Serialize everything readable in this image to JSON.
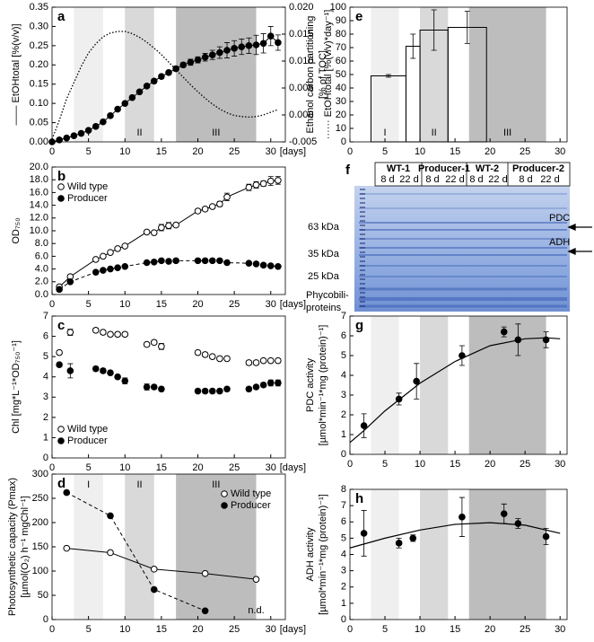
{
  "chart_data": [
    {
      "type": "scatter",
      "panel": "a",
      "ylabel": "—— EtOHtotal [%(v/v)]",
      "y2label": "······ EtOHtotal [%(v/v)*day⁻¹]",
      "xlabel": "[days]",
      "x": [
        0,
        1,
        2,
        3,
        4,
        5,
        6,
        7,
        8,
        9,
        10,
        11,
        12,
        13,
        14,
        15,
        16,
        17,
        18,
        19,
        20,
        21,
        22,
        23,
        24,
        25,
        26,
        27,
        28,
        29,
        30,
        31
      ],
      "series": [
        {
          "marker": "filled",
          "line": "solid",
          "color": "#000000",
          "values": [
            0.0,
            0.005,
            0.01,
            0.016,
            0.022,
            0.03,
            0.04,
            0.052,
            0.068,
            0.085,
            0.1,
            0.115,
            0.13,
            0.145,
            0.158,
            0.17,
            0.18,
            0.19,
            0.2,
            0.207,
            0.213,
            0.22,
            0.226,
            0.232,
            0.238,
            0.243,
            0.247,
            0.25,
            0.252,
            0.256,
            0.275,
            0.258
          ],
          "errors": [
            0.002,
            0.002,
            0.002,
            0.002,
            0.002,
            0.003,
            0.003,
            0.003,
            0.003,
            0.003,
            0.003,
            0.004,
            0.004,
            0.004,
            0.005,
            0.005,
            0.005,
            0.006,
            0.006,
            0.008,
            0.008,
            0.01,
            0.012,
            0.015,
            0.02,
            0.02,
            0.02,
            0.02,
            0.025,
            0.025,
            0.025,
            0.02
          ]
        },
        {
          "axis": "y2",
          "line": "dotted",
          "color": "#000000",
          "values": [
            -0.0045,
            -0.001,
            0.003,
            0.006,
            0.009,
            0.0115,
            0.0132,
            0.0145,
            0.0152,
            0.0155,
            0.0155,
            0.0151,
            0.0144,
            0.0135,
            0.0124,
            0.0112,
            0.0098,
            0.0084,
            0.007,
            0.0056,
            0.0043,
            0.0031,
            0.002,
            0.0011,
            0.0004,
            -0.0001,
            -0.0003,
            -0.0004,
            -0.0003,
            0,
            0.0005,
            0.001
          ]
        }
      ],
      "xlim": [
        0,
        32
      ],
      "xticks": [
        0,
        5,
        10,
        15,
        20,
        25,
        30
      ],
      "ylim": [
        0,
        0.35
      ],
      "yticks": [
        {
          "value": 0,
          "label": "0.00"
        },
        {
          "value": 0.05,
          "label": "0.05"
        },
        {
          "value": 0.1,
          "label": "0.10"
        },
        {
          "value": 0.15,
          "label": "0.15"
        },
        {
          "value": 0.2,
          "label": "0.20"
        },
        {
          "value": 0.25,
          "label": "0.25"
        },
        {
          "value": 0.3,
          "label": "0.30"
        },
        {
          "value": 0.35,
          "label": "0.35"
        }
      ],
      "y2lim": [
        -0.005,
        0.02
      ],
      "y2ticks": [
        {
          "value": -0.005,
          "label": "-0.005"
        },
        {
          "value": 0,
          "label": "0.000"
        },
        {
          "value": 0.005,
          "label": "0.005"
        },
        {
          "value": 0.01,
          "label": "0.010"
        },
        {
          "value": 0.015,
          "label": "0.015"
        },
        {
          "value": 0.02,
          "label": "0.020"
        }
      ],
      "shading": [
        [
          3,
          7
        ],
        [
          10,
          14
        ],
        [
          17,
          28
        ]
      ],
      "shading_labels": [
        "I",
        "II",
        "III"
      ]
    },
    {
      "type": "scatter",
      "panel": "b",
      "ylabel": "OD₇₅₀",
      "xlabel": "[days]",
      "legend": "upper left",
      "x": [
        1,
        2.5,
        6,
        7,
        8,
        9,
        10,
        13,
        14,
        15,
        16,
        17,
        20,
        21,
        22,
        23,
        24,
        27,
        28,
        29,
        30,
        31
      ],
      "series": [
        {
          "name": "Wild type",
          "marker": "open",
          "line": "solid",
          "color": "#000000",
          "values": [
            1.2,
            2.8,
            5.5,
            6.0,
            6.6,
            7.2,
            7.6,
            9.8,
            9.7,
            10.5,
            10.8,
            10.9,
            13.1,
            13.4,
            13.8,
            14.2,
            15.3,
            16.8,
            17.2,
            17.4,
            17.8,
            17.9
          ],
          "errors": [
            0.2,
            0.2,
            0.2,
            0.2,
            0.2,
            0.2,
            0.2,
            0.2,
            0.2,
            0.5,
            0.5,
            0.3,
            0.3,
            0.3,
            0.3,
            0.4,
            0.6,
            0.5,
            0.5,
            0.4,
            0.7,
            0.6
          ]
        },
        {
          "name": "Producer",
          "marker": "filled",
          "line": "dashed",
          "color": "#000000",
          "values": [
            0.8,
            2.0,
            3.5,
            3.8,
            4.0,
            4.2,
            4.4,
            5.0,
            5.1,
            5.3,
            5.2,
            5.3,
            5.3,
            5.3,
            5.3,
            5.3,
            5.0,
            4.9,
            4.8,
            4.6,
            4.5,
            4.4
          ]
        }
      ],
      "xlim": [
        0,
        32
      ],
      "xticks": [
        0,
        5,
        10,
        15,
        20,
        25,
        30
      ],
      "ylim": [
        0,
        20
      ],
      "yticks": [
        {
          "value": 0,
          "label": "0.0"
        },
        {
          "value": 2,
          "label": "2.0"
        },
        {
          "value": 4,
          "label": "4.0"
        },
        {
          "value": 6,
          "label": "6.0"
        },
        {
          "value": 8,
          "label": "8.0"
        },
        {
          "value": 10,
          "label": "10.0"
        },
        {
          "value": 12,
          "label": "12.0"
        },
        {
          "value": 14,
          "label": "14.0"
        },
        {
          "value": 16,
          "label": "16.0"
        },
        {
          "value": 18,
          "label": "18.0"
        },
        {
          "value": 20,
          "label": "20.0"
        }
      ]
    },
    {
      "type": "scatter",
      "panel": "c",
      "ylabel": "Chl [mg*L⁻¹*OD₇₅₀⁻¹]",
      "xlabel": "[days]",
      "legend": "lower left",
      "x": [
        1,
        2.5,
        6,
        7,
        8,
        9,
        10,
        13,
        14,
        15,
        20,
        21,
        22,
        23,
        24,
        27,
        28,
        29,
        30,
        31
      ],
      "series": [
        {
          "name": "Wild type",
          "marker": "open",
          "color": "#000000",
          "values": [
            5.2,
            6.2,
            6.3,
            6.2,
            6.1,
            6.1,
            6.1,
            5.6,
            5.7,
            5.5,
            5.2,
            5.1,
            5.0,
            4.9,
            4.9,
            4.7,
            4.7,
            4.8,
            4.8,
            4.8
          ],
          "errors": [
            0.1,
            0.15,
            0.1,
            0.1,
            0.1,
            0.1,
            0.1,
            0.1,
            0.1,
            0.15,
            0.1,
            0.1,
            0.1,
            0.1,
            0.1,
            0.1,
            0.1,
            0.1,
            0.1,
            0.1
          ]
        },
        {
          "name": "Producer",
          "marker": "filled",
          "color": "#000000",
          "values": [
            4.6,
            4.3,
            4.4,
            4.3,
            4.2,
            4.0,
            3.8,
            3.5,
            3.5,
            3.4,
            3.3,
            3.3,
            3.3,
            3.3,
            3.4,
            3.4,
            3.5,
            3.6,
            3.7,
            3.7
          ],
          "errors": [
            0.1,
            0.35,
            0.1,
            0.1,
            0.1,
            0.1,
            0.15,
            0.15,
            0.1,
            0.1,
            0.1,
            0.1,
            0.1,
            0.1,
            0.1,
            0.1,
            0.1,
            0.1,
            0.15,
            0.15
          ]
        }
      ],
      "xlim": [
        0,
        32
      ],
      "xticks": [
        0,
        5,
        10,
        15,
        20,
        25,
        30
      ],
      "ylim": [
        0,
        7
      ],
      "yticks": [
        0,
        1,
        2,
        3,
        4,
        5,
        6,
        7
      ]
    },
    {
      "type": "scatter",
      "panel": "d",
      "ylabel": [
        "Photosynthetic capacity (Pmax)",
        "[µmol(O₂) h⁻¹ mgChl⁻¹]"
      ],
      "xlabel": "[days]",
      "legend": "upper right",
      "annotation": "n.d.",
      "series": [
        {
          "name": "Wild type",
          "marker": "open",
          "line": "solid",
          "color": "#000000",
          "x": [
            2,
            8,
            14,
            21,
            28
          ],
          "values": [
            147,
            138,
            104,
            95,
            83
          ]
        },
        {
          "name": "Producer",
          "marker": "filled",
          "line": "dashed",
          "color": "#000000",
          "x": [
            2,
            8,
            14,
            21
          ],
          "values": [
            262,
            214,
            62,
            18
          ]
        }
      ],
      "xlim": [
        0,
        32
      ],
      "xticks": [
        0,
        5,
        10,
        15,
        20,
        25,
        30
      ],
      "ylim": [
        0,
        300
      ],
      "yticks": [
        0,
        50,
        100,
        150,
        200,
        250,
        300
      ],
      "shading": [
        [
          3,
          7
        ],
        [
          10,
          14
        ],
        [
          17,
          28
        ]
      ],
      "shading_labels": [
        "I",
        "II",
        "III"
      ]
    },
    {
      "type": "histogram",
      "panel": "e",
      "ylabel": [
        "Ethanol carbon partitioning",
        "[% of TOC]"
      ],
      "bins": [
        3,
        8,
        10,
        14,
        19.5
      ],
      "values": [
        49,
        71,
        83,
        85
      ],
      "errors": [
        1,
        9,
        15,
        12
      ],
      "xlim": [
        0,
        31
      ],
      "xticks": [
        0,
        5,
        10,
        15,
        20,
        25,
        30
      ],
      "ylim": [
        0,
        100
      ],
      "yticks": [
        0,
        10,
        20,
        30,
        40,
        50,
        60,
        70,
        80,
        90,
        100
      ],
      "shading": [
        [
          3,
          7
        ],
        [
          10,
          14
        ],
        [
          17,
          28
        ]
      ],
      "shading_labels": [
        "I",
        "II",
        "III"
      ]
    },
    {
      "type": "scatter",
      "panel": "g",
      "ylabel": [
        "PDC activity",
        "[µmol*min⁻¹*mg (protein)⁻¹]"
      ],
      "series": [
        {
          "marker": "filled",
          "color": "#000000",
          "x": [
            2,
            7,
            9.5,
            16,
            22,
            24,
            28
          ],
          "values": [
            1.45,
            2.8,
            3.7,
            5.0,
            6.2,
            5.8,
            5.8
          ],
          "errors": [
            0.6,
            0.3,
            0.9,
            0.5,
            0.25,
            0.8,
            0.4
          ]
        }
      ],
      "fit": {
        "x": [
          0,
          2,
          5,
          10,
          15,
          20,
          25,
          28,
          30
        ],
        "values": [
          0.6,
          1.2,
          2.2,
          3.6,
          4.7,
          5.5,
          5.85,
          5.9,
          5.85
        ]
      },
      "xlim": [
        0,
        31
      ],
      "xticks": [
        0,
        5,
        10,
        15,
        20,
        25,
        30
      ],
      "ylim": [
        0,
        7
      ],
      "yticks": [
        0,
        1,
        2,
        3,
        4,
        5,
        6,
        7
      ],
      "shading": [
        [
          3,
          7
        ],
        [
          10,
          14
        ],
        [
          17,
          28
        ]
      ]
    },
    {
      "type": "scatter",
      "panel": "h",
      "ylabel": [
        "ADH activity",
        "[µmol*min⁻¹*mg (protein)⁻¹]"
      ],
      "series": [
        {
          "marker": "filled",
          "color": "#000000",
          "x": [
            2,
            7,
            9,
            16,
            22,
            24,
            28
          ],
          "values": [
            5.3,
            4.7,
            5.0,
            6.3,
            6.5,
            5.9,
            5.1
          ],
          "errors": [
            1.4,
            0.3,
            0.2,
            1.2,
            0.6,
            0.3,
            0.5
          ]
        }
      ],
      "fit": {
        "x": [
          0,
          5,
          10,
          15,
          20,
          25,
          30
        ],
        "values": [
          4.4,
          5.0,
          5.5,
          5.85,
          5.95,
          5.8,
          5.3
        ]
      },
      "xlim": [
        0,
        31
      ],
      "xticks": [
        0,
        5,
        10,
        15,
        20,
        25,
        30
      ],
      "ylim": [
        0,
        8
      ],
      "yticks": [
        0,
        1,
        2,
        3,
        4,
        5,
        6,
        7,
        8
      ],
      "shading": [
        [
          3,
          7
        ],
        [
          10,
          14
        ],
        [
          17,
          28
        ]
      ]
    }
  ],
  "gel": {
    "panel": "f",
    "lanes": [
      {
        "label": "WT-1",
        "days": [
          "8 d",
          "22 d"
        ]
      },
      {
        "label": "Producer-1",
        "days": [
          "8 d",
          "22 d"
        ]
      },
      {
        "label": "WT-2",
        "days": [
          "8 d",
          "22 d"
        ]
      },
      {
        "label": "Producer-2",
        "days": [
          "8 d",
          "22 d"
        ]
      }
    ],
    "markers": [
      "63 kDa",
      "35 kDa",
      "25 kDa"
    ],
    "bottom_label": [
      "Phycobili-",
      "proteins"
    ],
    "arrows": [
      "PDC",
      "ADH"
    ]
  }
}
